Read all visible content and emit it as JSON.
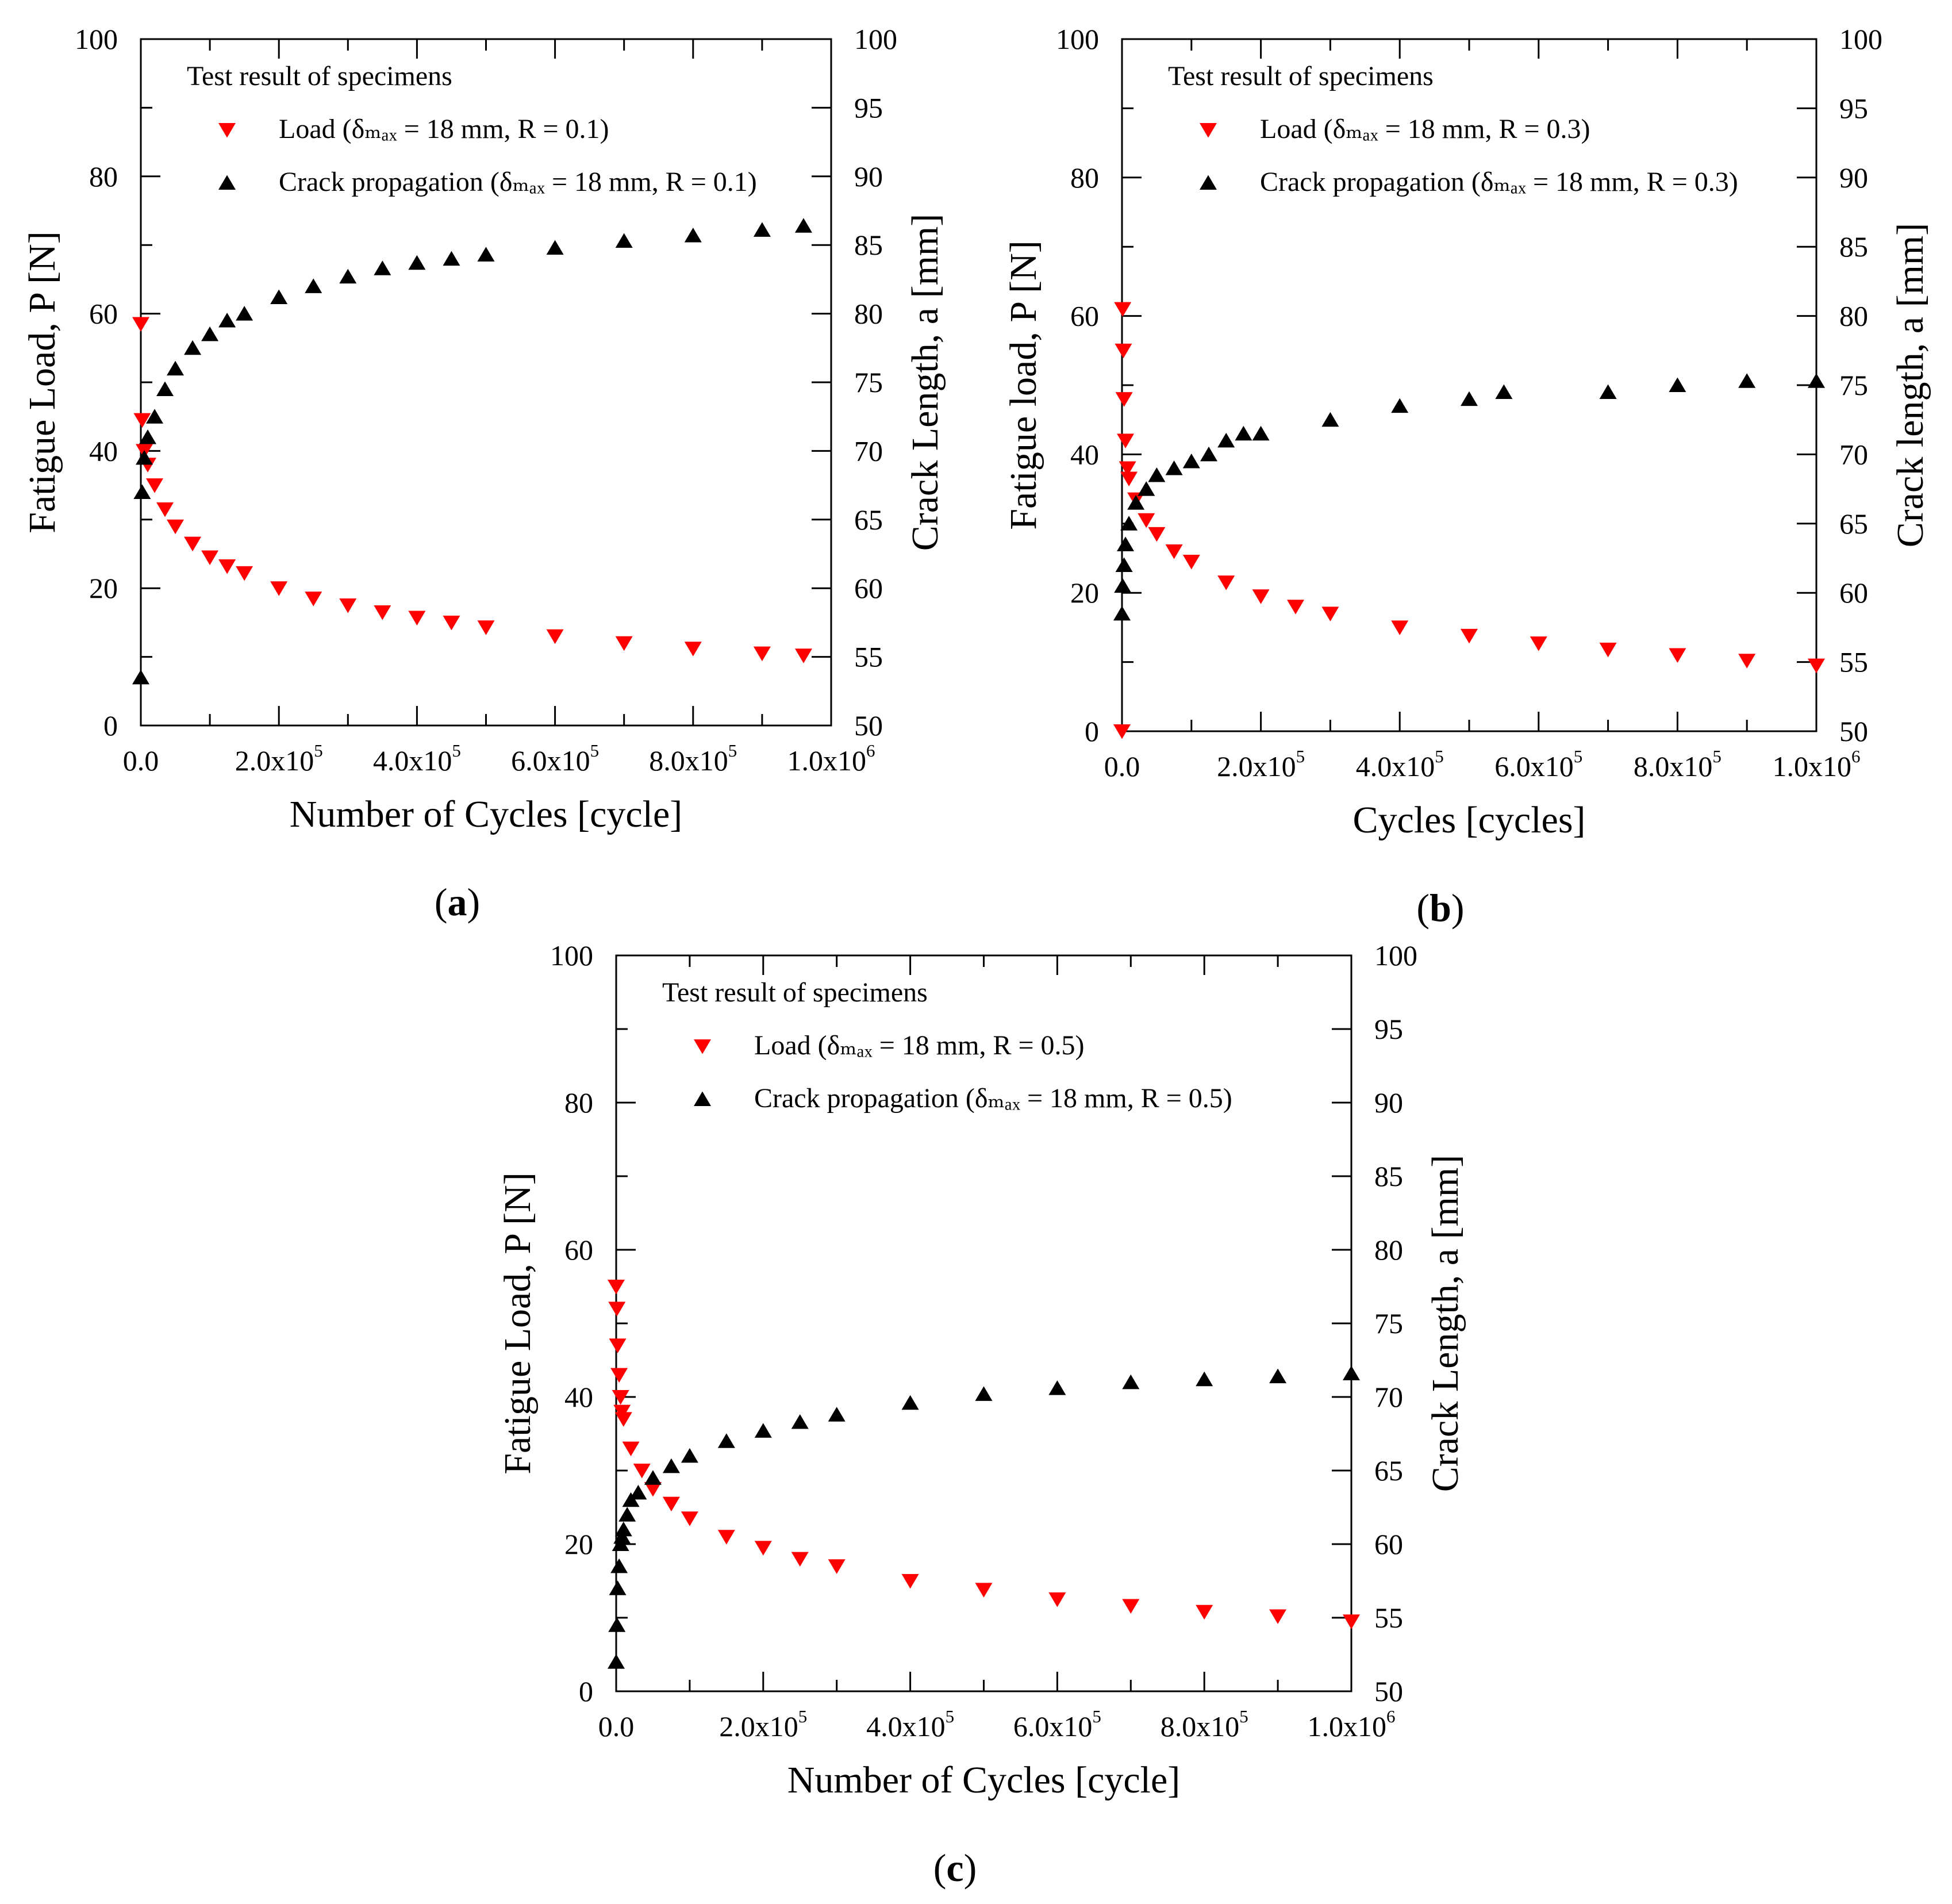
{
  "figure": {
    "background": "#ffffff",
    "load_color": "#ff0000",
    "crack_color": "#000000"
  },
  "chart_data": [
    {
      "type": "scatter",
      "panel_label": "a",
      "title": "",
      "xlabel": "Number of Cycles [cycle]",
      "ylabel_left": "Fatigue Load, P [N]",
      "ylabel_right": "Crack Length, a [mm]",
      "xlim": [
        0,
        1000000
      ],
      "ylim_left": [
        0,
        100
      ],
      "ylim_right": [
        50,
        100
      ],
      "x_ticks": [
        {
          "value": 0,
          "mant": "0.0",
          "exp": ""
        },
        {
          "value": 200000,
          "mant": "2.0x10",
          "exp": "5"
        },
        {
          "value": 400000,
          "mant": "4.0x10",
          "exp": "5"
        },
        {
          "value": 600000,
          "mant": "6.0x10",
          "exp": "5"
        },
        {
          "value": 800000,
          "mant": "8.0x10",
          "exp": "5"
        },
        {
          "value": 1000000,
          "mant": "1.0x10",
          "exp": "6"
        }
      ],
      "y_left_ticks": [
        "0",
        "20",
        "40",
        "60",
        "80",
        "100"
      ],
      "y_right_ticks": [
        "50",
        "55",
        "60",
        "65",
        "70",
        "75",
        "80",
        "85",
        "90",
        "95",
        "100"
      ],
      "legend_title": "Test result of specimens",
      "legend": [
        {
          "marker": "triangle-down",
          "label": "Load (δₘₐₓ = 18 mm, R = 0.1)"
        },
        {
          "marker": "triangle-up",
          "label": "Crack propagation (δₘₐₓ = 18 mm, R = 0.1)"
        }
      ],
      "series": [
        {
          "name": "Load (δmax = 18 mm, R = 0.1)",
          "axis": "left",
          "marker": "triangle-down",
          "color": "#ff0000",
          "x": [
            0,
            2000,
            5000,
            10000,
            20000,
            35000,
            50000,
            75000,
            100000,
            125000,
            150000,
            200000,
            250000,
            300000,
            350000,
            400000,
            450000,
            500000,
            600000,
            700000,
            800000,
            900000,
            960000
          ],
          "y": [
            58.5,
            44.5,
            40.0,
            38.0,
            35.0,
            31.5,
            29.0,
            26.5,
            24.5,
            23.2,
            22.2,
            20.0,
            18.5,
            17.5,
            16.5,
            15.7,
            15.0,
            14.3,
            13.0,
            12.0,
            11.2,
            10.5,
            10.2
          ]
        },
        {
          "name": "Crack propagation (δmax = 18 mm, R = 0.1)",
          "axis": "right",
          "marker": "triangle-up",
          "color": "#000000",
          "x": [
            0,
            2000,
            5000,
            10000,
            20000,
            35000,
            50000,
            75000,
            100000,
            125000,
            150000,
            200000,
            250000,
            300000,
            350000,
            400000,
            450000,
            500000,
            600000,
            700000,
            800000,
            900000,
            960000
          ],
          "y": [
            53.5,
            67.0,
            69.5,
            71.0,
            72.5,
            74.5,
            76.0,
            77.5,
            78.5,
            79.5,
            80.0,
            81.2,
            82.0,
            82.7,
            83.3,
            83.7,
            84.0,
            84.3,
            84.8,
            85.3,
            85.7,
            86.1,
            86.4
          ]
        }
      ]
    },
    {
      "type": "scatter",
      "panel_label": "b",
      "title": "",
      "xlabel": "Cycles [cycles]",
      "ylabel_left": "Fatigue load, P [N]",
      "ylabel_right": "Crack length, a [mm]",
      "xlim": [
        0,
        1000000
      ],
      "ylim_left": [
        0,
        100
      ],
      "ylim_right": [
        50,
        100
      ],
      "x_ticks": [
        {
          "value": 0,
          "mant": "0.0",
          "exp": ""
        },
        {
          "value": 200000,
          "mant": "2.0x10",
          "exp": "5"
        },
        {
          "value": 400000,
          "mant": "4.0x10",
          "exp": "5"
        },
        {
          "value": 600000,
          "mant": "6.0x10",
          "exp": "5"
        },
        {
          "value": 800000,
          "mant": "8.0x10",
          "exp": "5"
        },
        {
          "value": 1000000,
          "mant": "1.0x10",
          "exp": "6"
        }
      ],
      "y_left_ticks": [
        "0",
        "20",
        "40",
        "60",
        "80",
        "100"
      ],
      "y_right_ticks": [
        "50",
        "55",
        "60",
        "65",
        "70",
        "75",
        "80",
        "85",
        "90",
        "95",
        "100"
      ],
      "legend_title": "Test result of specimens",
      "legend": [
        {
          "marker": "triangle-down",
          "label": "Load (δₘₐₓ = 18 mm, R = 0.3)"
        },
        {
          "marker": "triangle-up",
          "label": "Crack propagation (δₘₐₓ = 18 mm, R = 0.3)"
        }
      ],
      "series": [
        {
          "name": "Load (δmax = 18 mm, R = 0.3)",
          "axis": "left",
          "marker": "triangle-down",
          "color": "#ff0000",
          "x": [
            0,
            1000,
            2000,
            3000,
            5000,
            8000,
            10000,
            20000,
            35000,
            50000,
            75000,
            100000,
            150000,
            200000,
            250000,
            300000,
            400000,
            500000,
            600000,
            700000,
            800000,
            900000,
            1000000
          ],
          "y": [
            0,
            61.0,
            55.0,
            48.0,
            42.0,
            38.0,
            36.5,
            33.5,
            30.5,
            28.5,
            26.0,
            24.5,
            21.5,
            19.5,
            18.0,
            17.0,
            15.0,
            13.8,
            12.7,
            11.8,
            11.0,
            10.2,
            9.5
          ]
        },
        {
          "name": "Crack propagation (δmax = 18 mm, R = 0.3)",
          "axis": "right",
          "marker": "triangle-up",
          "color": "#000000",
          "x": [
            0,
            1000,
            3000,
            5000,
            10000,
            20000,
            35000,
            50000,
            75000,
            100000,
            125000,
            150000,
            175000,
            200000,
            300000,
            400000,
            500000,
            550000,
            700000,
            800000,
            900000,
            1000000
          ],
          "y": [
            58.5,
            60.5,
            62.0,
            63.5,
            65.0,
            66.5,
            67.5,
            68.5,
            69.0,
            69.5,
            70.0,
            71.0,
            71.5,
            71.5,
            72.5,
            73.5,
            74.0,
            74.5,
            74.5,
            75.0,
            75.3,
            75.3
          ]
        }
      ]
    },
    {
      "type": "scatter",
      "panel_label": "c",
      "title": "",
      "xlabel": "Number of Cycles [cycle]",
      "ylabel_left": "Fatigue Load, P [N]",
      "ylabel_right": "Crack Length, a [mm]",
      "xlim": [
        0,
        1000000
      ],
      "ylim_left": [
        0,
        100
      ],
      "ylim_right": [
        50,
        100
      ],
      "x_ticks": [
        {
          "value": 0,
          "mant": "0.0",
          "exp": ""
        },
        {
          "value": 200000,
          "mant": "2.0x10",
          "exp": "5"
        },
        {
          "value": 400000,
          "mant": "4.0x10",
          "exp": "5"
        },
        {
          "value": 600000,
          "mant": "6.0x10",
          "exp": "5"
        },
        {
          "value": 800000,
          "mant": "8.0x10",
          "exp": "5"
        },
        {
          "value": 1000000,
          "mant": "1.0x10",
          "exp": "6"
        }
      ],
      "y_left_ticks": [
        "0",
        "20",
        "40",
        "60",
        "80",
        "100"
      ],
      "y_right_ticks": [
        "50",
        "55",
        "60",
        "65",
        "70",
        "75",
        "80",
        "85",
        "90",
        "95",
        "100"
      ],
      "legend_title": "Test result of specimens",
      "legend": [
        {
          "marker": "triangle-down",
          "label": "Load (δₘₐₓ = 18 mm, R = 0.5)"
        },
        {
          "marker": "triangle-up",
          "label": "Crack propagation (δₘₐₓ = 18 mm, R = 0.5)"
        }
      ],
      "series": [
        {
          "name": "Load (δmax = 18 mm, R = 0.5)",
          "axis": "left",
          "marker": "triangle-down",
          "color": "#ff0000",
          "x": [
            0,
            1000,
            2000,
            4000,
            6000,
            8000,
            10000,
            20000,
            35000,
            50000,
            75000,
            100000,
            150000,
            200000,
            250000,
            300000,
            400000,
            500000,
            600000,
            700000,
            800000,
            900000,
            1000000
          ],
          "y": [
            55.0,
            52.0,
            47.0,
            43.0,
            40.0,
            38.0,
            37.0,
            33.0,
            30.0,
            27.5,
            25.5,
            23.5,
            21.0,
            19.5,
            18.0,
            17.0,
            15.0,
            13.8,
            12.5,
            11.6,
            10.8,
            10.2,
            9.5
          ]
        },
        {
          "name": "Crack propagation (δmax = 18 mm, R = 0.5)",
          "axis": "right",
          "marker": "triangle-up",
          "color": "#000000",
          "x": [
            0,
            1000,
            2000,
            4000,
            6000,
            8000,
            10000,
            15000,
            20000,
            30000,
            50000,
            75000,
            100000,
            150000,
            200000,
            250000,
            300000,
            400000,
            500000,
            600000,
            700000,
            800000,
            900000,
            1000000
          ],
          "y": [
            52.0,
            54.5,
            57.0,
            58.5,
            60.0,
            60.5,
            61.0,
            62.0,
            63.0,
            63.5,
            64.5,
            65.3,
            66.0,
            67.0,
            67.7,
            68.3,
            68.8,
            69.6,
            70.2,
            70.6,
            71.0,
            71.2,
            71.4,
            71.6
          ]
        }
      ]
    }
  ]
}
